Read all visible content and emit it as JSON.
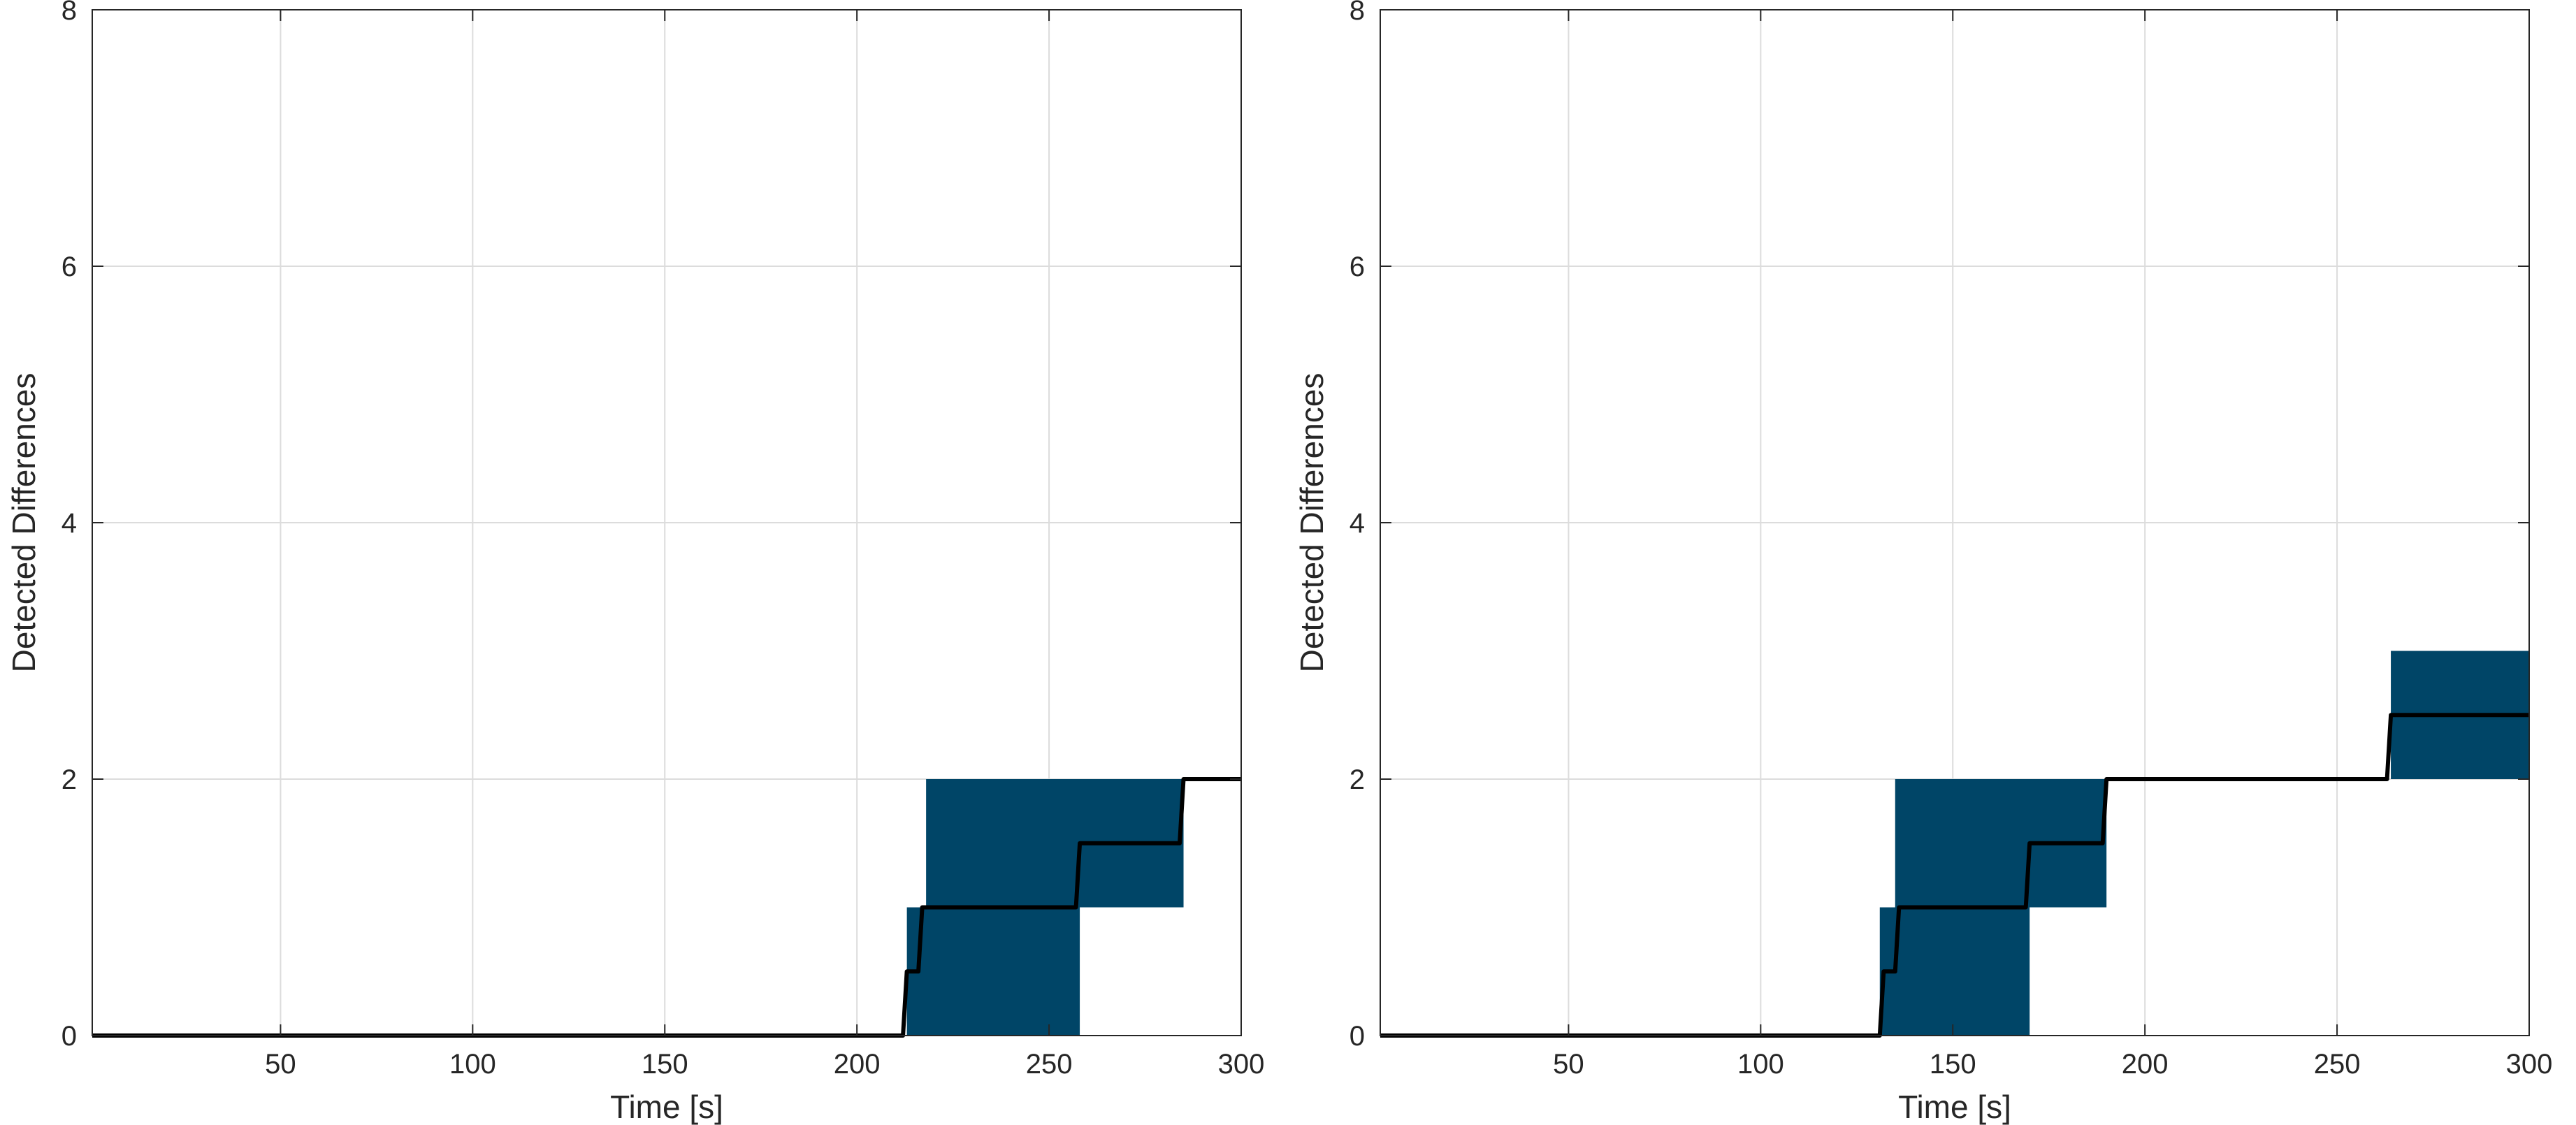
{
  "chart_data": [
    {
      "type": "area",
      "xlabel": "Time [s]",
      "ylabel": "Detected Differences",
      "xlim": [
        1,
        300
      ],
      "ylim": [
        0,
        8
      ],
      "xticks": [
        50,
        100,
        150,
        200,
        250,
        300
      ],
      "yticks": [
        0,
        2,
        4,
        6,
        8
      ],
      "grid": true,
      "band_color": "#004567",
      "line_color": "#000000",
      "bands": [
        {
          "x0": 213,
          "x1": 258,
          "y0": 0,
          "y1": 1
        },
        {
          "x0": 218,
          "x1": 285,
          "y0": 1,
          "y1": 2
        }
      ],
      "line": {
        "x": [
          1,
          212,
          213,
          216,
          217,
          257,
          258,
          284,
          285,
          300
        ],
        "y": [
          0,
          0,
          0.5,
          0.5,
          1,
          1,
          1.5,
          1.5,
          2,
          2
        ]
      }
    },
    {
      "type": "area",
      "xlabel": "Time [s]",
      "ylabel": "Detected Differences",
      "xlim": [
        1,
        300
      ],
      "ylim": [
        0,
        8
      ],
      "xticks": [
        50,
        100,
        150,
        200,
        250,
        300
      ],
      "yticks": [
        0,
        2,
        4,
        6,
        8
      ],
      "grid": true,
      "band_color": "#004567",
      "line_color": "#000000",
      "bands": [
        {
          "x0": 131,
          "x1": 170,
          "y0": 0,
          "y1": 1
        },
        {
          "x0": 135,
          "x1": 190,
          "y0": 1,
          "y1": 2
        },
        {
          "x0": 264,
          "x1": 300,
          "y0": 2,
          "y1": 3
        }
      ],
      "line": {
        "x": [
          1,
          131,
          132,
          135,
          136,
          169,
          170,
          189,
          190,
          263,
          264,
          300
        ],
        "y": [
          0,
          0,
          0.5,
          0.5,
          1,
          1,
          1.5,
          1.5,
          2,
          2,
          2.5,
          2.5
        ]
      }
    }
  ]
}
